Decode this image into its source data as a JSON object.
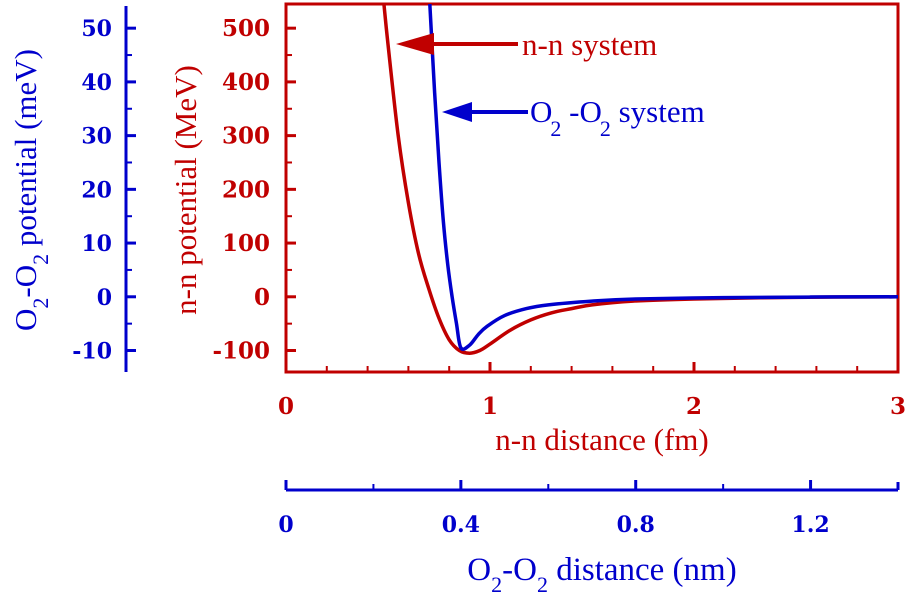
{
  "chart_data": {
    "type": "line",
    "colors": {
      "nn": "#c00000",
      "o2": "#0000cc"
    },
    "axes": {
      "x_bottom": {
        "label": "n-n distance (fm)",
        "range": [
          0,
          3
        ],
        "ticks": [
          "0",
          "1",
          "2",
          "3"
        ]
      },
      "x_second": {
        "label_prefix": "O",
        "label_sub1": "2",
        "label_mid": "-O",
        "label_sub2": "2",
        "label_suffix": " distance (nm)",
        "range": [
          0,
          1.4
        ],
        "ticks": [
          "0",
          "0.4",
          "0.8",
          "1.2"
        ]
      },
      "y_left_red": {
        "label": "n-n potential (MeV)",
        "range": [
          -140,
          545
        ],
        "ticks": [
          "500",
          "400",
          "300",
          "200",
          "100",
          "0",
          "-100"
        ]
      },
      "y_left_blue": {
        "label_prefix": "O",
        "label_sub1": "2",
        "label_mid": "-O",
        "label_sub2": "2",
        "label_suffix": " potential (meV)",
        "range": [
          -14,
          54.5
        ],
        "ticks": [
          "50",
          "40",
          "30",
          "20",
          "10",
          "0",
          "-10"
        ]
      }
    },
    "series": [
      {
        "name": "n-n system",
        "color": "#c00000",
        "x": [
          0.48,
          0.5,
          0.55,
          0.6,
          0.65,
          0.7,
          0.75,
          0.8,
          0.85,
          0.9,
          0.95,
          1.0,
          1.1,
          1.2,
          1.3,
          1.4,
          1.5,
          1.7,
          2.0,
          2.5,
          3.0
        ],
        "y": [
          545,
          470,
          300,
          175,
          80,
          15,
          -40,
          -80,
          -100,
          -105,
          -100,
          -88,
          -62,
          -43,
          -30,
          -22,
          -15,
          -8,
          -4,
          -1,
          0
        ]
      },
      {
        "name_prefix": "O",
        "name_sub1": "2",
        "name_mid": " -O",
        "name_sub2": "2",
        "name_suffix": "  system",
        "color": "#0000cc",
        "x_nm": [
          0.329,
          0.34,
          0.35,
          0.36,
          0.37,
          0.38,
          0.39,
          0.4,
          0.42,
          0.44,
          0.46,
          0.5,
          0.55,
          0.6,
          0.7,
          0.8,
          1.0,
          1.2,
          1.4
        ],
        "y_meV": [
          54.5,
          38,
          25,
          14,
          6,
          0,
          -5,
          -9.5,
          -9,
          -7,
          -5.5,
          -3.5,
          -2.2,
          -1.5,
          -0.8,
          -0.4,
          -0.15,
          -0.05,
          0
        ]
      }
    ],
    "annotations": [
      {
        "text": "n-n system",
        "color": "#c00000"
      },
      {
        "text_ref": "series.1",
        "color": "#0000cc"
      }
    ],
    "grid": false,
    "legend": "none"
  }
}
